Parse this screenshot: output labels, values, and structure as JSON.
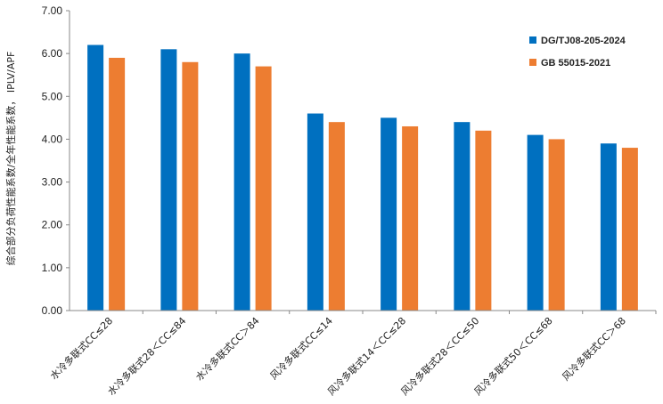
{
  "chart_data": {
    "type": "bar",
    "title": "",
    "xlabel": "",
    "ylabel": "综合部分负荷性能系数/全年性能系数， IPLV/APF",
    "ylim": [
      0,
      7
    ],
    "yticks": [
      "0.00",
      "1.00",
      "2.00",
      "3.00",
      "4.00",
      "5.00",
      "6.00",
      "7.00"
    ],
    "grid": false,
    "legend_position": "top-right",
    "categories": [
      "水冷多联式CC≤28",
      "水冷多联式28＜CC≤84",
      "水冷多联式CC＞84",
      "风冷多联式CC≤14",
      "风冷多联式14＜CC≤28",
      "风冷多联式28＜CC≤50",
      "风冷多联式50＜CC≤68",
      "风冷多联式CC＞68"
    ],
    "series": [
      {
        "name": "DG/TJ08-205-2024",
        "color": "#0070C0",
        "values": [
          6.2,
          6.1,
          6.0,
          4.6,
          4.5,
          4.4,
          4.1,
          3.9
        ]
      },
      {
        "name": "GB 55015-2021",
        "color": "#ED7D31",
        "values": [
          5.9,
          5.8,
          5.7,
          4.4,
          4.3,
          4.2,
          4.0,
          3.8
        ]
      }
    ]
  }
}
